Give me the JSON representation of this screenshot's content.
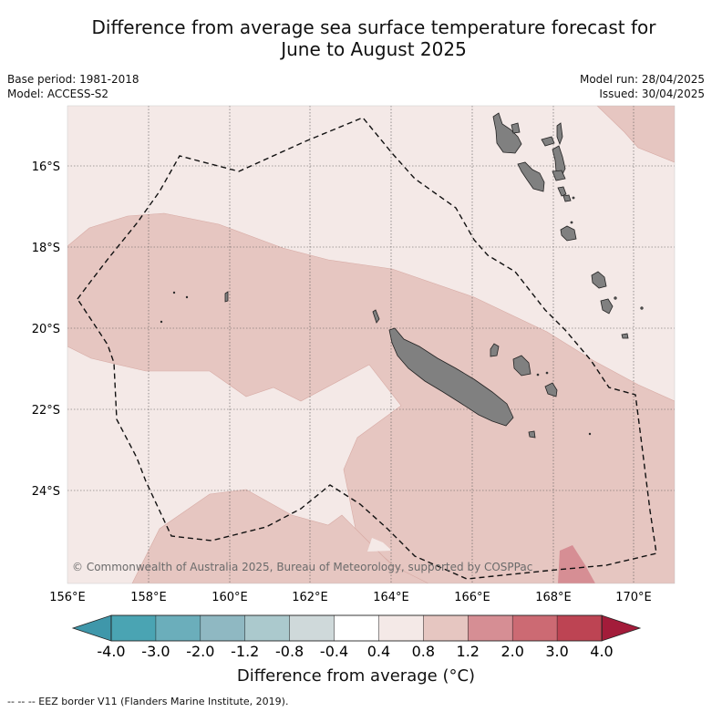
{
  "header": {
    "title_line1": "Difference from average sea surface temperature forecast for",
    "title_line2": "June to August 2025"
  },
  "meta": {
    "base_period": "Base period: 1981-2018",
    "model": "Model: ACCESS-S2",
    "model_run": "Model run: 28/04/2025",
    "issued": "Issued: 30/04/2025"
  },
  "map": {
    "lat_ticks": [
      "16°S",
      "18°S",
      "20°S",
      "22°S",
      "24°S"
    ],
    "lon_ticks": [
      "156°E",
      "158°E",
      "160°E",
      "162°E",
      "164°E",
      "166°E",
      "168°E",
      "170°E"
    ],
    "copyright": "© Commonwealth of Australia 2025, Bureau of Meteorology, supported by COSPPac",
    "colors": {
      "anomaly_0_4_to_0_8": "#f4e9e7",
      "anomaly_0_8_to_1_2": "#e6c6c1",
      "anomaly_1_2_to_2_0": "#d68e94",
      "land": "#808080",
      "eez_line": "#111111"
    }
  },
  "colorbar": {
    "label": "Difference from average (°C)",
    "ticks": [
      "-4.0",
      "-3.0",
      "-2.0",
      "-1.2",
      "-0.8",
      "-0.4",
      "0.4",
      "0.8",
      "1.2",
      "2.0",
      "3.0",
      "4.0"
    ],
    "colors": [
      "#3f97aa",
      "#4aa4b3",
      "#6baebb",
      "#8fb8c2",
      "#abc9cd",
      "#cfd9da",
      "#ffffff",
      "#f4e9e7",
      "#e6c6c1",
      "#d68e94",
      "#cc6a73",
      "#bd4453",
      "#a31c3a"
    ]
  },
  "legend": {
    "eez_text": "-- EEZ border V11 (Flanders Marine Institute, 2019)."
  }
}
